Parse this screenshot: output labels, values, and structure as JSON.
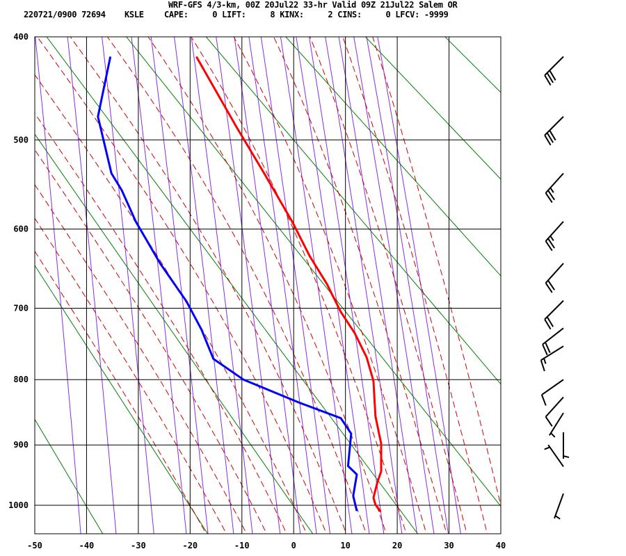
{
  "chart_data": {
    "type": "line",
    "title": "WRF-GFS 4/3-km, 00Z 20Jul22 33-hr Valid 09Z 21Jul22 Salem OR",
    "subtitle": {
      "id": "220721/0900 72694",
      "station": "KSLE",
      "indices": "CAPE:     0 LIFT:     8 KINX:     2 CINS:     0 LFCV: -9999"
    },
    "diagram": "thermodynamic sounding (Stuve, p^0.286 vertical scale)",
    "xlim": [
      -50,
      40
    ],
    "ylim_hpa": [
      1050,
      400
    ],
    "x_ticks": [
      -50,
      -40,
      -30,
      -20,
      -10,
      0,
      10,
      20,
      30,
      40
    ],
    "y_ticks": [
      400,
      500,
      600,
      700,
      800,
      900,
      1000
    ],
    "grid": true,
    "colors": {
      "temperature": "#ff0000",
      "dewpoint": "#0000ff",
      "dry_adiabat": "#008000",
      "moist_adiabat": "#cc0000",
      "mixing_ratio": "#8a2be2",
      "grid": "#000000",
      "wind_barb": "#000000"
    },
    "series": [
      {
        "key": "temperature",
        "points": [
          [
            418,
            -18.8
          ],
          [
            487,
            -11.0
          ],
          [
            536,
            -5.7
          ],
          [
            591,
            -0.3
          ],
          [
            633,
            3.1
          ],
          [
            668,
            6.4
          ],
          [
            705,
            9.1
          ],
          [
            734,
            11.8
          ],
          [
            768,
            14.1
          ],
          [
            802,
            15.4
          ],
          [
            855,
            15.8
          ],
          [
            898,
            16.9
          ],
          [
            943,
            16.9
          ],
          [
            960,
            16.2
          ],
          [
            987,
            15.4
          ],
          [
            999,
            15.8
          ],
          [
            1011,
            16.8
          ]
        ]
      },
      {
        "key": "dewpoint",
        "points": [
          [
            418,
            -35.4
          ],
          [
            476,
            -37.8
          ],
          [
            536,
            -35.2
          ],
          [
            555,
            -33.2
          ],
          [
            591,
            -30.5
          ],
          [
            642,
            -25.8
          ],
          [
            691,
            -20.7
          ],
          [
            729,
            -17.8
          ],
          [
            770,
            -15.5
          ],
          [
            800,
            -9.7
          ],
          [
            834,
            1.0
          ],
          [
            858,
            9.1
          ],
          [
            882,
            11.1
          ],
          [
            934,
            10.5
          ],
          [
            948,
            12.2
          ],
          [
            984,
            11.5
          ],
          [
            1010,
            12.2
          ]
        ]
      }
    ],
    "background_lines": {
      "dry_adiabats_theta_K": [
        233,
        253,
        273,
        293,
        313,
        333,
        353,
        373,
        393,
        413,
        433
      ],
      "moist_adiabats_T1000_C": [
        -20,
        -16,
        -12,
        -8,
        -4,
        0,
        4,
        8,
        12,
        16,
        20,
        24,
        28,
        32,
        36,
        40
      ],
      "mixing_ratio_gkg": [
        0.1,
        0.2,
        0.4,
        0.7,
        1,
        1.5,
        2,
        3,
        4,
        5,
        6,
        8,
        10,
        12,
        15,
        18,
        22,
        26,
        30
      ]
    },
    "wind_barbs": [
      {
        "p": 418,
        "dir": 225,
        "spd": 30
      },
      {
        "p": 476,
        "dir": 225,
        "spd": 30
      },
      {
        "p": 536,
        "dir": 222,
        "spd": 25
      },
      {
        "p": 591,
        "dir": 222,
        "spd": 25
      },
      {
        "p": 642,
        "dir": 222,
        "spd": 20
      },
      {
        "p": 690,
        "dir": 225,
        "spd": 20
      },
      {
        "p": 727,
        "dir": 232,
        "spd": 20
      },
      {
        "p": 752,
        "dir": 238,
        "spd": 15
      },
      {
        "p": 800,
        "dir": 235,
        "spd": 10
      },
      {
        "p": 826,
        "dir": 222,
        "spd": 10
      },
      {
        "p": 850,
        "dir": 212,
        "spd": 5
      },
      {
        "p": 880,
        "dir": 180,
        "spd": 5
      },
      {
        "p": 935,
        "dir": 325,
        "spd": 5
      },
      {
        "p": 980,
        "dir": 200,
        "spd": 5
      }
    ]
  }
}
